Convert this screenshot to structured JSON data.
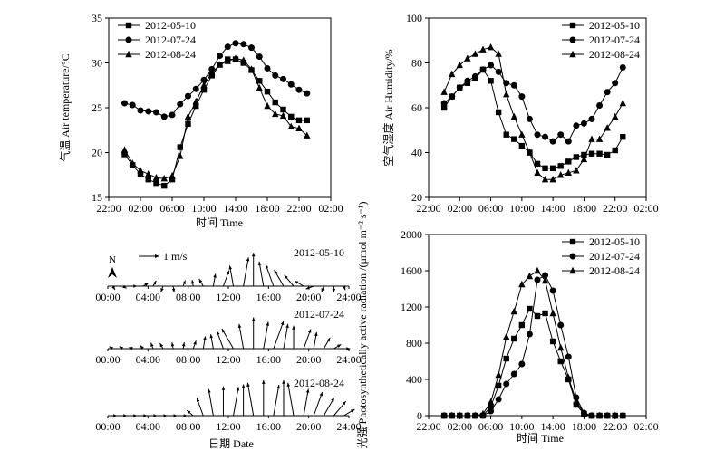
{
  "x_title": "时间 Time",
  "date_title": "日期 Date",
  "legend_dates": [
    "2012-05-10",
    "2012-07-24",
    "2012-08-24"
  ],
  "chart_data": [
    {
      "id": "temperature",
      "type": "line",
      "ylabel": "气温 Air temperature/°C",
      "xlabel": "时间 Time",
      "xticks": [
        "22:00",
        "02:00",
        "06:00",
        "10:00",
        "14:00",
        "18:00",
        "22:00",
        "02:00"
      ],
      "ylim": [
        15,
        35
      ],
      "yticks": [
        15,
        20,
        25,
        30,
        35
      ],
      "legend_position": "top-left",
      "x": [
        "0:00",
        "1:00",
        "2:00",
        "3:00",
        "4:00",
        "5:00",
        "6:00",
        "7:00",
        "8:00",
        "9:00",
        "10:00",
        "11:00",
        "12:00",
        "13:00",
        "14:00",
        "15:00",
        "16:00",
        "17:00",
        "18:00",
        "19:00",
        "20:00",
        "21:00",
        "22:00",
        "23:00"
      ],
      "series": [
        {
          "name": "2012-05-10",
          "marker": "square",
          "values": [
            19.8,
            18.6,
            17.6,
            17.0,
            16.6,
            16.3,
            17.0,
            20.6,
            23.2,
            25.2,
            27.0,
            28.6,
            29.8,
            30.4,
            30.4,
            30.0,
            29.2,
            28.0,
            26.8,
            25.6,
            24.8,
            24.0,
            23.6,
            23.6
          ]
        },
        {
          "name": "2012-07-24",
          "marker": "circle",
          "values": [
            25.5,
            25.3,
            24.7,
            24.6,
            24.5,
            24.0,
            24.2,
            25.4,
            26.3,
            27.1,
            28.1,
            29.3,
            30.8,
            31.8,
            32.2,
            32.1,
            31.7,
            30.7,
            29.4,
            28.6,
            28.2,
            27.6,
            27.0,
            26.6
          ]
        },
        {
          "name": "2012-08-24",
          "marker": "triangle",
          "values": [
            20.3,
            18.8,
            18.0,
            17.6,
            17.2,
            17.1,
            17.4,
            19.6,
            24.0,
            25.7,
            27.5,
            28.9,
            29.8,
            30.2,
            30.5,
            30.3,
            29.3,
            27.2,
            25.2,
            24.3,
            24.1,
            22.9,
            22.7,
            21.9
          ]
        }
      ]
    },
    {
      "id": "humidity",
      "type": "line",
      "ylabel": "空气湿度 Air Humidity/%",
      "xlabel": "",
      "xticks": [
        "22:00",
        "02:00",
        "06:00",
        "10:00",
        "14:00",
        "18:00",
        "22:00",
        "02:00"
      ],
      "ylim": [
        20,
        100
      ],
      "yticks": [
        20,
        40,
        60,
        80,
        100
      ],
      "legend_position": "top-right",
      "x": [
        "0:00",
        "1:00",
        "2:00",
        "3:00",
        "4:00",
        "5:00",
        "6:00",
        "7:00",
        "8:00",
        "9:00",
        "10:00",
        "11:00",
        "12:00",
        "13:00",
        "14:00",
        "15:00",
        "16:00",
        "17:00",
        "18:00",
        "19:00",
        "20:00",
        "21:00",
        "22:00",
        "23:00"
      ],
      "series": [
        {
          "name": "2012-05-10",
          "marker": "square",
          "values": [
            60,
            65,
            69,
            71,
            73,
            77,
            72,
            58,
            48,
            46,
            43,
            40,
            35,
            33,
            33,
            34,
            36,
            38,
            39,
            39.5,
            39.5,
            39,
            41,
            47
          ]
        },
        {
          "name": "2012-07-24",
          "marker": "circle",
          "values": [
            62,
            65,
            69,
            72,
            74,
            77,
            79,
            76,
            71,
            70,
            65,
            55,
            48,
            47,
            45,
            48,
            45,
            52,
            53,
            55,
            61,
            67,
            71,
            78
          ]
        },
        {
          "name": "2012-08-24",
          "marker": "triangle",
          "values": [
            67,
            75,
            79,
            82,
            84,
            86,
            87,
            84,
            66,
            56,
            48,
            40,
            31,
            28,
            28,
            30,
            31,
            32,
            37,
            46,
            46,
            51,
            56,
            62
          ]
        }
      ]
    },
    {
      "id": "wind",
      "type": "quiver",
      "xlabel": "日期 Date",
      "xticks": [
        "00:00",
        "04:00",
        "08:00",
        "12:00",
        "16:00",
        "20:00",
        "24:00"
      ],
      "north_label": "N",
      "scale_label": "1 m/s",
      "scale_value_ms": 1,
      "hours": [
        0,
        1,
        2,
        3,
        4,
        5,
        6,
        7,
        8,
        9,
        10,
        11,
        12,
        13,
        14,
        15,
        16,
        17,
        18,
        19,
        20,
        21,
        22,
        23
      ],
      "series": [
        {
          "name": "2012-05-10",
          "speed": [
            0.2,
            0.2,
            0.2,
            0.3,
            0.3,
            0.3,
            0.3,
            0.3,
            0.3,
            0.4,
            0.6,
            0.8,
            1.0,
            1.4,
            1.6,
            1.2,
            1.1,
            0.9,
            0.7,
            0.5,
            0.4,
            0.3,
            0.3,
            0.2
          ],
          "direction_deg": [
            150,
            120,
            90,
            60,
            30,
            200,
            170,
            20,
            350,
            330,
            10,
            20,
            350,
            10,
            0,
            350,
            340,
            330,
            320,
            300,
            250,
            200,
            180,
            160
          ]
        },
        {
          "name": "2012-07-24",
          "speed": [
            0.2,
            0.2,
            0.2,
            0.2,
            0.3,
            0.3,
            0.3,
            0.3,
            0.4,
            0.6,
            0.7,
            0.9,
            1.1,
            1.2,
            1.5,
            1.3,
            1.4,
            1.2,
            1.1,
            1.0,
            0.8,
            0.6,
            0.4,
            0.3
          ],
          "direction_deg": [
            300,
            300,
            290,
            320,
            340,
            330,
            350,
            10,
            20,
            10,
            350,
            340,
            330,
            350,
            0,
            10,
            20,
            10,
            0,
            20,
            10,
            30,
            60,
            90
          ]
        },
        {
          "name": "2012-08-24",
          "speed": [
            0.2,
            0.2,
            0.2,
            0.2,
            0.2,
            0.2,
            0.2,
            0.2,
            0.4,
            0.9,
            1.3,
            1.4,
            1.4,
            1.5,
            1.6,
            1.7,
            1.5,
            1.7,
            1.6,
            1.3,
            1.2,
            1.0,
            0.9,
            0.6
          ],
          "direction_deg": [
            90,
            90,
            90,
            90,
            90,
            90,
            90,
            90,
            310,
            340,
            350,
            0,
            10,
            0,
            350,
            0,
            10,
            0,
            350,
            10,
            20,
            30,
            40,
            60
          ]
        }
      ]
    },
    {
      "id": "par",
      "type": "line",
      "ylabel": "光强 Photosynthetically active radiation /(μmol m⁻² s⁻¹)",
      "xlabel": "时间 Time",
      "xticks": [
        "22:00",
        "02:00",
        "06:00",
        "10:00",
        "14:00",
        "18:00",
        "22:00",
        "02:00"
      ],
      "ylim": [
        0,
        2000
      ],
      "yticks": [
        0,
        400,
        800,
        1200,
        1600,
        2000
      ],
      "legend_position": "top-right",
      "x": [
        "0:00",
        "1:00",
        "2:00",
        "3:00",
        "4:00",
        "5:00",
        "6:00",
        "7:00",
        "8:00",
        "9:00",
        "10:00",
        "11:00",
        "12:00",
        "13:00",
        "14:00",
        "15:00",
        "16:00",
        "17:00",
        "18:00",
        "19:00",
        "20:00",
        "21:00",
        "22:00",
        "23:00"
      ],
      "series": [
        {
          "name": "2012-05-10",
          "marker": "square",
          "values": [
            0,
            0,
            0,
            0,
            0,
            0,
            100,
            330,
            630,
            850,
            1000,
            1180,
            1100,
            1130,
            820,
            600,
            400,
            120,
            20,
            0,
            0,
            0,
            0,
            0
          ]
        },
        {
          "name": "2012-07-24",
          "marker": "circle",
          "values": [
            0,
            0,
            0,
            0,
            0,
            0,
            50,
            180,
            350,
            460,
            570,
            900,
            1500,
            1550,
            1380,
            1000,
            650,
            200,
            30,
            0,
            0,
            0,
            0,
            0
          ]
        },
        {
          "name": "2012-08-24",
          "marker": "triangle",
          "values": [
            0,
            0,
            0,
            0,
            0,
            20,
            150,
            450,
            870,
            1150,
            1450,
            1540,
            1600,
            1490,
            1130,
            750,
            420,
            160,
            20,
            0,
            0,
            0,
            0,
            0
          ]
        }
      ]
    }
  ]
}
